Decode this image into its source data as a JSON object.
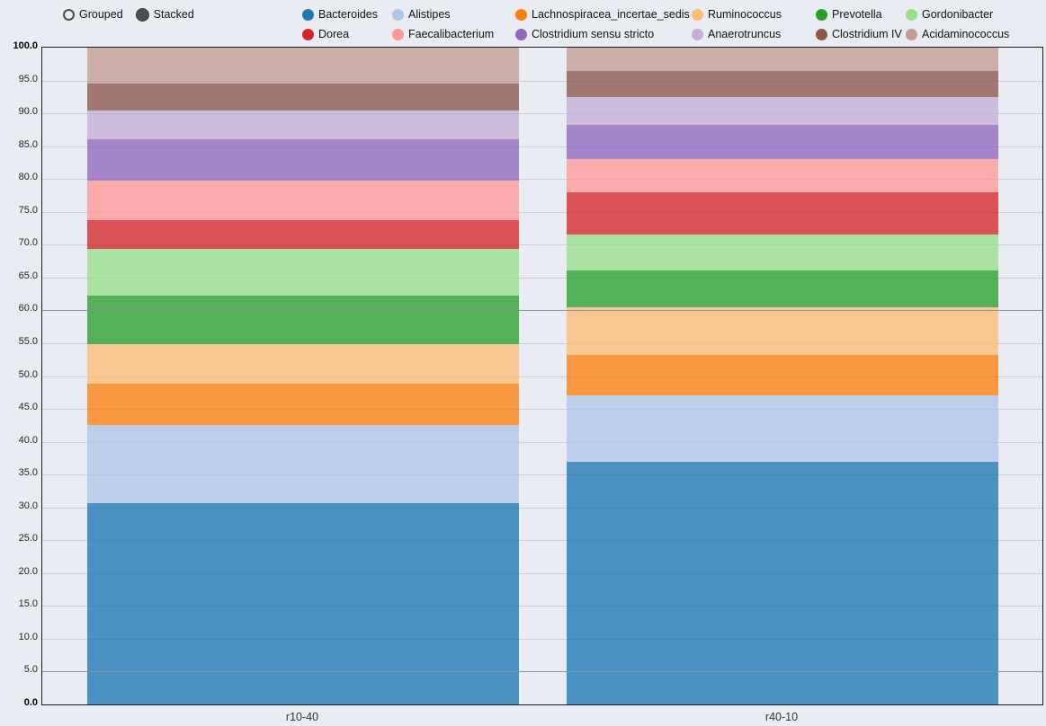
{
  "controls": {
    "modes": [
      {
        "label": "Grouped",
        "selected": false
      },
      {
        "label": "Stacked",
        "selected": true
      }
    ]
  },
  "chart_data": {
    "type": "bar",
    "mode": "stacked",
    "title": "",
    "xlabel": "",
    "ylabel": "",
    "categories": [
      "r10-40",
      "r40-10"
    ],
    "ylim": [
      0,
      100
    ],
    "ytick_step": 5,
    "ytick_labels": [
      "0.0",
      "5.0",
      "10.0",
      "15.0",
      "20.0",
      "25.0",
      "30.0",
      "35.0",
      "40.0",
      "45.0",
      "50.0",
      "55.0",
      "60.0",
      "65.0",
      "70.0",
      "75.0",
      "80.0",
      "85.0",
      "90.0",
      "95.0",
      "100.0"
    ],
    "grid": true,
    "legend_position": "top",
    "reference_lines": [
      60.0,
      5.0
    ],
    "series": [
      {
        "name": "Bacteroides",
        "color": "#1f77b4",
        "values": [
          30.7,
          37.0
        ]
      },
      {
        "name": "Alistipes",
        "color": "#aec7e8",
        "values": [
          11.8,
          10.0
        ]
      },
      {
        "name": "Lachnospiracea_incertae_sedis",
        "color": "#ff7f0e",
        "values": [
          6.4,
          6.2
        ]
      },
      {
        "name": "Ruminococcus",
        "color": "#ffbb78",
        "values": [
          6.0,
          7.3
        ]
      },
      {
        "name": "Prevotella",
        "color": "#2ca02c",
        "values": [
          7.3,
          5.6
        ]
      },
      {
        "name": "Gordonibacter",
        "color": "#98df8a",
        "values": [
          7.1,
          5.4
        ]
      },
      {
        "name": "Dorea",
        "color": "#d62728",
        "values": [
          4.4,
          6.5
        ]
      },
      {
        "name": "Faecalibacterium",
        "color": "#ff9896",
        "values": [
          6.1,
          5.0
        ]
      },
      {
        "name": "Clostridium sensu stricto",
        "color": "#9467bd",
        "values": [
          6.2,
          5.2
        ]
      },
      {
        "name": "Anaerotruncus",
        "color": "#c5b0d5",
        "values": [
          4.5,
          4.3
        ]
      },
      {
        "name": "Clostridium IV",
        "color": "#8c564b",
        "values": [
          4.0,
          4.0
        ]
      },
      {
        "name": "Acidaminococcus",
        "color": "#c49c94",
        "values": [
          5.5,
          3.5
        ]
      }
    ]
  }
}
